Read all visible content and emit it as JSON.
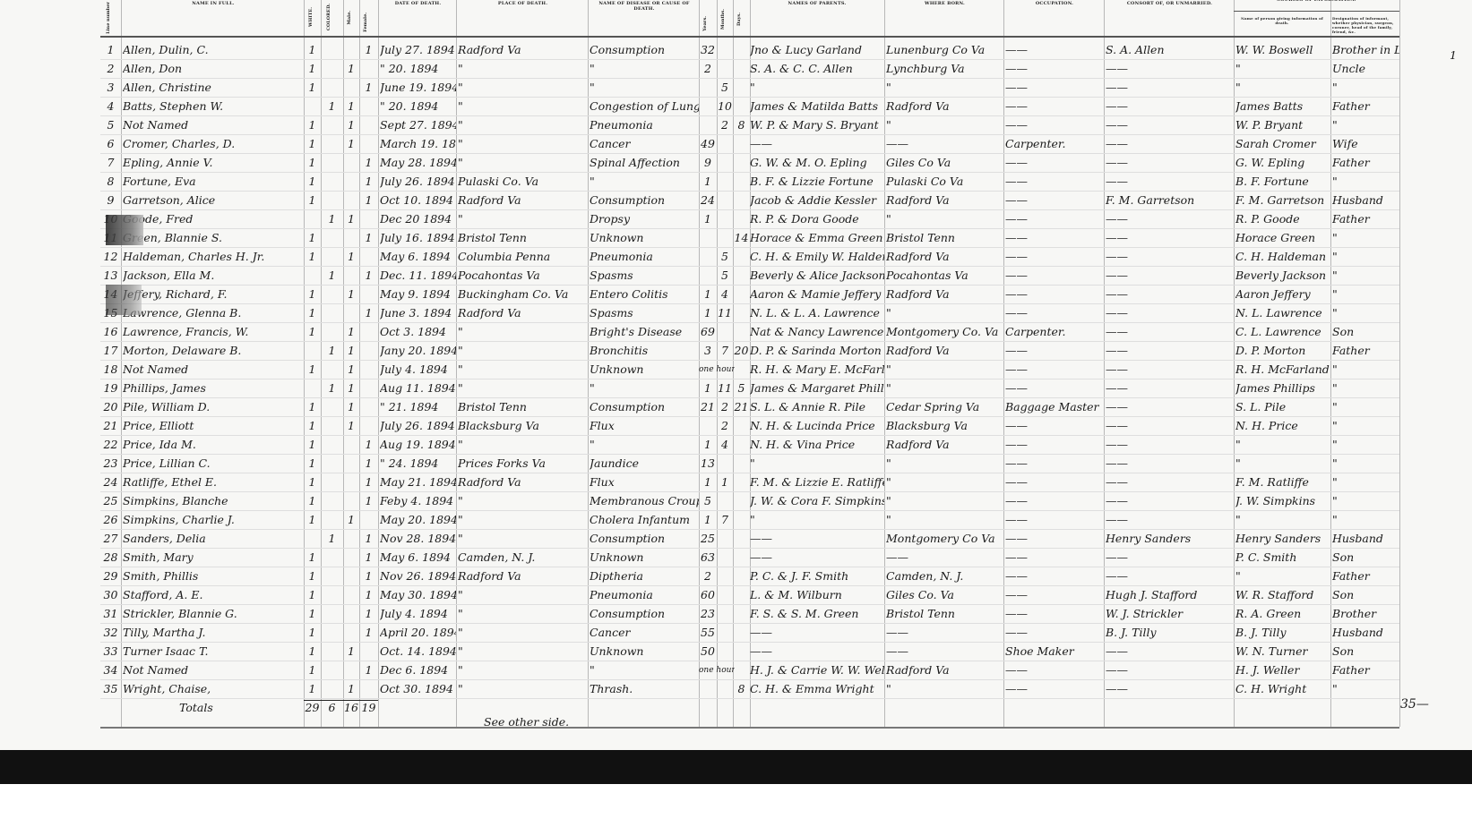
{
  "headers": {
    "line_number": "Line number",
    "name": "NAME IN FULL.",
    "white": "WHITE.",
    "colored": "COLORED.",
    "male": "Male.",
    "female": "Female.",
    "date": "DATE OF DEATH.",
    "place": "PLACE OF DEATH.",
    "cause": "NAME OF DISEASE OR CAUSE OF DEATH.",
    "years": "Years.",
    "months": "Months.",
    "days": "Days.",
    "parents": "NAMES OF PARENTS.",
    "born": "WHERE BORN.",
    "occupation": "OCCUPATION.",
    "consort": "CONSORT OF, OR UNMARRIED.",
    "sources": "SOURCES OF INFORMATION.",
    "informant": "Name of person giving information of death.",
    "designation": "Designation of informant, whether physician, surgeon, coroner, head of the family, friend, &c."
  },
  "rows": [
    {
      "no": "1",
      "name": "Allen, Dulin, C.",
      "white": "1",
      "colored": "",
      "male": "",
      "female": "1",
      "date": "July 27. 1894",
      "place": "Radford Va",
      "cause": "Consumption",
      "years": "32",
      "months": "",
      "days": "",
      "parents": "Jno & Lucy Garland",
      "born": "Lunenburg Co Va",
      "occupation": "——",
      "consort": "S. A. Allen",
      "informant": "W. W. Boswell",
      "designation": "Brother in Law"
    },
    {
      "no": "2",
      "name": "Allen, Don",
      "white": "1",
      "colored": "",
      "male": "1",
      "female": "",
      "date": "\" 20. 1894",
      "place": "\"",
      "cause": "\"",
      "years": "2",
      "months": "",
      "days": "",
      "parents": "S. A. & C. C. Allen",
      "born": "Lynchburg Va",
      "occupation": "——",
      "consort": "——",
      "informant": "\"",
      "designation": "Uncle"
    },
    {
      "no": "3",
      "name": "Allen, Christine",
      "white": "1",
      "colored": "",
      "male": "",
      "female": "1",
      "date": "June 19. 1894",
      "place": "\"",
      "cause": "\"",
      "years": "",
      "months": "5",
      "days": "",
      "parents": "\"",
      "born": "\"",
      "occupation": "——",
      "consort": "——",
      "informant": "\"",
      "designation": "\""
    },
    {
      "no": "4",
      "name": "Batts, Stephen W.",
      "white": "",
      "colored": "1",
      "male": "1",
      "female": "",
      "date": "\" 20. 1894",
      "place": "\"",
      "cause": "Congestion of Lungs",
      "years": "",
      "months": "10",
      "days": "",
      "parents": "James & Matilda Batts",
      "born": "Radford Va",
      "occupation": "——",
      "consort": "——",
      "informant": "James Batts",
      "designation": "Father"
    },
    {
      "no": "5",
      "name": "Not Named",
      "white": "1",
      "colored": "",
      "male": "1",
      "female": "",
      "date": "Sept 27. 1894",
      "place": "\"",
      "cause": "Pneumonia",
      "years": "",
      "months": "2",
      "days": "8",
      "parents": "W. P. & Mary S. Bryant",
      "born": "\"",
      "occupation": "——",
      "consort": "——",
      "informant": "W. P. Bryant",
      "designation": "\""
    },
    {
      "no": "6",
      "name": "Cromer, Charles, D.",
      "white": "1",
      "colored": "",
      "male": "1",
      "female": "",
      "date": "March 19. 1894",
      "place": "\"",
      "cause": "Cancer",
      "years": "49",
      "months": "",
      "days": "",
      "parents": "——",
      "born": "——",
      "occupation": "Carpenter.",
      "consort": "——",
      "informant": "Sarah Cromer",
      "designation": "Wife"
    },
    {
      "no": "7",
      "name": "Epling, Annie V.",
      "white": "1",
      "colored": "",
      "male": "",
      "female": "1",
      "date": "May 28. 1894",
      "place": "\"",
      "cause": "Spinal Affection",
      "years": "9",
      "months": "",
      "days": "",
      "parents": "G. W. & M. O. Epling",
      "born": "Giles Co Va",
      "occupation": "——",
      "consort": "——",
      "informant": "G. W. Epling",
      "designation": "Father"
    },
    {
      "no": "8",
      "name": "Fortune, Eva",
      "white": "1",
      "colored": "",
      "male": "",
      "female": "1",
      "date": "July 26. 1894",
      "place": "Pulaski Co. Va",
      "cause": "\"",
      "years": "1",
      "months": "",
      "days": "",
      "parents": "B. F. & Lizzie Fortune",
      "born": "Pulaski Co Va",
      "occupation": "——",
      "consort": "——",
      "informant": "B. F. Fortune",
      "designation": "\""
    },
    {
      "no": "9",
      "name": "Garretson, Alice",
      "white": "1",
      "colored": "",
      "male": "",
      "female": "1",
      "date": "Oct 10. 1894",
      "place": "Radford Va",
      "cause": "Consumption",
      "years": "24",
      "months": "",
      "days": "",
      "parents": "Jacob & Addie Kessler",
      "born": "Radford Va",
      "occupation": "——",
      "consort": "F. M. Garretson",
      "informant": "F. M. Garretson",
      "designation": "Husband"
    },
    {
      "no": "10",
      "name": "Goode, Fred",
      "white": "",
      "colored": "1",
      "male": "1",
      "female": "",
      "date": "Dec 20 1894",
      "place": "\"",
      "cause": "Dropsy",
      "years": "1",
      "months": "",
      "days": "",
      "parents": "R. P. & Dora Goode",
      "born": "\"",
      "occupation": "——",
      "consort": "——",
      "informant": "R. P. Goode",
      "designation": "Father"
    },
    {
      "no": "11",
      "name": "Green, Blannie S.",
      "white": "1",
      "colored": "",
      "male": "",
      "female": "1",
      "date": "July 16. 1894",
      "place": "Bristol Tenn",
      "cause": "Unknown",
      "years": "",
      "months": "",
      "days": "14",
      "parents": "Horace & Emma Green",
      "born": "Bristol Tenn",
      "occupation": "——",
      "consort": "——",
      "informant": "Horace Green",
      "designation": "\""
    },
    {
      "no": "12",
      "name": "Haldeman, Charles H. Jr.",
      "white": "1",
      "colored": "",
      "male": "1",
      "female": "",
      "date": "May 6. 1894",
      "place": "Columbia Penna",
      "cause": "Pneumonia",
      "years": "",
      "months": "5",
      "days": "",
      "parents": "C. H. & Emily W. Haldeman",
      "born": "Radford Va",
      "occupation": "——",
      "consort": "——",
      "informant": "C. H. Haldeman",
      "designation": "\""
    },
    {
      "no": "13",
      "name": "Jackson, Ella M.",
      "white": "",
      "colored": "1",
      "male": "",
      "female": "1",
      "date": "Dec. 11. 1894",
      "place": "Pocahontas Va",
      "cause": "Spasms",
      "years": "",
      "months": "5",
      "days": "",
      "parents": "Beverly & Alice Jackson",
      "born": "Pocahontas Va",
      "occupation": "——",
      "consort": "——",
      "informant": "Beverly Jackson",
      "designation": "\""
    },
    {
      "no": "14",
      "name": "Jeffery, Richard, F.",
      "white": "1",
      "colored": "",
      "male": "1",
      "female": "",
      "date": "May 9. 1894",
      "place": "Buckingham Co. Va",
      "cause": "Entero Colitis",
      "years": "1",
      "months": "4",
      "days": "",
      "parents": "Aaron & Mamie Jeffery",
      "born": "Radford Va",
      "occupation": "——",
      "consort": "——",
      "informant": "Aaron Jeffery",
      "designation": "\""
    },
    {
      "no": "15",
      "name": "Lawrence, Glenna B.",
      "white": "1",
      "colored": "",
      "male": "",
      "female": "1",
      "date": "June 3. 1894",
      "place": "Radford Va",
      "cause": "Spasms",
      "years": "1",
      "months": "11",
      "days": "",
      "parents": "N. L. & L. A. Lawrence",
      "born": "\"",
      "occupation": "——",
      "consort": "——",
      "informant": "N. L. Lawrence",
      "designation": "\""
    },
    {
      "no": "16",
      "name": "Lawrence, Francis, W.",
      "white": "1",
      "colored": "",
      "male": "1",
      "female": "",
      "date": "Oct 3. 1894",
      "place": "\"",
      "cause": "Bright's Disease",
      "years": "69",
      "months": "",
      "days": "",
      "parents": "Nat & Nancy Lawrence",
      "born": "Montgomery Co. Va",
      "occupation": "Carpenter.",
      "consort": "——",
      "informant": "C. L. Lawrence",
      "designation": "Son"
    },
    {
      "no": "17",
      "name": "Morton, Delaware B.",
      "white": "",
      "colored": "1",
      "male": "1",
      "female": "",
      "date": "Jany 20. 1894",
      "place": "\"",
      "cause": "Bronchitis",
      "years": "3",
      "months": "7",
      "days": "20",
      "parents": "D. P. & Sarinda Morton",
      "born": "Radford Va",
      "occupation": "——",
      "consort": "——",
      "informant": "D. P. Morton",
      "designation": "Father"
    },
    {
      "no": "18",
      "name": "Not Named",
      "white": "1",
      "colored": "",
      "male": "1",
      "female": "",
      "date": "July 4. 1894",
      "place": "\"",
      "cause": "Unknown",
      "years": "one hour",
      "months": "",
      "days": "",
      "parents": "R. H. & Mary E. McFarland",
      "born": "\"",
      "occupation": "——",
      "consort": "——",
      "informant": "R. H. McFarland",
      "designation": "\""
    },
    {
      "no": "19",
      "name": "Phillips, James",
      "white": "",
      "colored": "1",
      "male": "1",
      "female": "",
      "date": "Aug 11. 1894",
      "place": "\"",
      "cause": "\"",
      "years": "1",
      "months": "11",
      "days": "5",
      "parents": "James & Margaret Phillips",
      "born": "\"",
      "occupation": "——",
      "consort": "——",
      "informant": "James Phillips",
      "designation": "\""
    },
    {
      "no": "20",
      "name": "Pile, William D.",
      "white": "1",
      "colored": "",
      "male": "1",
      "female": "",
      "date": "\" 21. 1894",
      "place": "Bristol Tenn",
      "cause": "Consumption",
      "years": "21",
      "months": "2",
      "days": "21",
      "parents": "S. L. & Annie R. Pile",
      "born": "Cedar Spring Va",
      "occupation": "Baggage Master",
      "consort": "——",
      "informant": "S. L. Pile",
      "designation": "\""
    },
    {
      "no": "21",
      "name": "Price, Elliott",
      "white": "1",
      "colored": "",
      "male": "1",
      "female": "",
      "date": "July 26. 1894",
      "place": "Blacksburg Va",
      "cause": "Flux",
      "years": "",
      "months": "2",
      "days": "",
      "parents": "N. H. & Lucinda Price",
      "born": "Blacksburg Va",
      "occupation": "——",
      "consort": "——",
      "informant": "N. H. Price",
      "designation": "\""
    },
    {
      "no": "22",
      "name": "Price, Ida M.",
      "white": "1",
      "colored": "",
      "male": "",
      "female": "1",
      "date": "Aug 19. 1894",
      "place": "\"",
      "cause": "\"",
      "years": "1",
      "months": "4",
      "days": "",
      "parents": "N. H. & Vina Price",
      "born": "Radford Va",
      "occupation": "——",
      "consort": "——",
      "informant": "\"",
      "designation": "\""
    },
    {
      "no": "23",
      "name": "Price, Lillian C.",
      "white": "1",
      "colored": "",
      "male": "",
      "female": "1",
      "date": "\" 24. 1894",
      "place": "Prices Forks Va",
      "cause": "Jaundice",
      "years": "13",
      "months": "",
      "days": "",
      "parents": "\"",
      "born": "\"",
      "occupation": "——",
      "consort": "——",
      "informant": "\"",
      "designation": "\""
    },
    {
      "no": "24",
      "name": "Ratliffe, Ethel E.",
      "white": "1",
      "colored": "",
      "male": "",
      "female": "1",
      "date": "May 21. 1894",
      "place": "Radford Va",
      "cause": "Flux",
      "years": "1",
      "months": "1",
      "days": "",
      "parents": "F. M. & Lizzie E. Ratliffe",
      "born": "\"",
      "occupation": "——",
      "consort": "——",
      "informant": "F. M. Ratliffe",
      "designation": "\""
    },
    {
      "no": "25",
      "name": "Simpkins, Blanche",
      "white": "1",
      "colored": "",
      "male": "",
      "female": "1",
      "date": "Feby 4. 1894",
      "place": "\"",
      "cause": "Membranous Croup",
      "years": "5",
      "months": "",
      "days": "",
      "parents": "J. W. & Cora F. Simpkins",
      "born": "\"",
      "occupation": "——",
      "consort": "——",
      "informant": "J. W. Simpkins",
      "designation": "\""
    },
    {
      "no": "26",
      "name": "Simpkins, Charlie J.",
      "white": "1",
      "colored": "",
      "male": "1",
      "female": "",
      "date": "May 20. 1894",
      "place": "\"",
      "cause": "Cholera Infantum",
      "years": "1",
      "months": "7",
      "days": "",
      "parents": "\"",
      "born": "\"",
      "occupation": "——",
      "consort": "——",
      "informant": "\"",
      "designation": "\""
    },
    {
      "no": "27",
      "name": "Sanders, Delia",
      "white": "",
      "colored": "1",
      "male": "",
      "female": "1",
      "date": "Nov 28. 1894",
      "place": "\"",
      "cause": "Consumption",
      "years": "25",
      "months": "",
      "days": "",
      "parents": "——",
      "born": "Montgomery Co Va",
      "occupation": "——",
      "consort": "Henry Sanders",
      "informant": "Henry Sanders",
      "designation": "Husband"
    },
    {
      "no": "28",
      "name": "Smith, Mary",
      "white": "1",
      "colored": "",
      "male": "",
      "female": "1",
      "date": "May 6. 1894",
      "place": "Camden, N. J.",
      "cause": "Unknown",
      "years": "63",
      "months": "",
      "days": "",
      "parents": "——",
      "born": "——",
      "occupation": "——",
      "consort": "——",
      "informant": "P. C. Smith",
      "designation": "Son"
    },
    {
      "no": "29",
      "name": "Smith, Phillis",
      "white": "1",
      "colored": "",
      "male": "",
      "female": "1",
      "date": "Nov 26. 1894",
      "place": "Radford Va",
      "cause": "Diptheria",
      "years": "2",
      "months": "",
      "days": "",
      "parents": "P. C. & J. F. Smith",
      "born": "Camden, N. J.",
      "occupation": "——",
      "consort": "——",
      "informant": "\"",
      "designation": "Father"
    },
    {
      "no": "30",
      "name": "Stafford, A. E.",
      "white": "1",
      "colored": "",
      "male": "",
      "female": "1",
      "date": "May 30. 1894",
      "place": "\"",
      "cause": "Pneumonia",
      "years": "60",
      "months": "",
      "days": "",
      "parents": "L. & M. Wilburn",
      "born": "Giles Co. Va",
      "occupation": "——",
      "consort": "Hugh J. Stafford",
      "informant": "W. R. Stafford",
      "designation": "Son"
    },
    {
      "no": "31",
      "name": "Strickler, Blannie G.",
      "white": "1",
      "colored": "",
      "male": "",
      "female": "1",
      "date": "July 4. 1894",
      "place": "\"",
      "cause": "Consumption",
      "years": "23",
      "months": "",
      "days": "",
      "parents": "F. S. & S. M. Green",
      "born": "Bristol Tenn",
      "occupation": "——",
      "consort": "W. J. Strickler",
      "informant": "R. A. Green",
      "designation": "Brother"
    },
    {
      "no": "32",
      "name": "Tilly, Martha J.",
      "white": "1",
      "colored": "",
      "male": "",
      "female": "1",
      "date": "April 20. 1894",
      "place": "\"",
      "cause": "Cancer",
      "years": "55",
      "months": "",
      "days": "",
      "parents": "——",
      "born": "——",
      "occupation": "——",
      "consort": "B. J. Tilly",
      "informant": "B. J. Tilly",
      "designation": "Husband"
    },
    {
      "no": "33",
      "name": "Turner Isaac T.",
      "white": "1",
      "colored": "",
      "male": "1",
      "female": "",
      "date": "Oct. 14. 1894",
      "place": "\"",
      "cause": "Unknown",
      "years": "50",
      "months": "",
      "days": "",
      "parents": "——",
      "born": "——",
      "occupation": "Shoe Maker",
      "consort": "——",
      "informant": "W. N. Turner",
      "designation": "Son"
    },
    {
      "no": "34",
      "name": "Not Named",
      "white": "1",
      "colored": "",
      "male": "",
      "female": "1",
      "date": "Dec 6. 1894",
      "place": "\"",
      "cause": "\"",
      "years": "one hour",
      "months": "",
      "days": "",
      "parents": "H. J. & Carrie W. W. Weller",
      "born": "Radford Va",
      "occupation": "——",
      "consort": "——",
      "informant": "H. J. Weller",
      "designation": "Father"
    },
    {
      "no": "35",
      "name": "Wright, Chaise,",
      "white": "1",
      "colored": "",
      "male": "1",
      "female": "",
      "date": "Oct 30. 1894",
      "place": "\"",
      "cause": "Thrash.",
      "years": "",
      "months": "",
      "days": "8",
      "parents": "C. H. & Emma Wright",
      "born": "\"",
      "occupation": "——",
      "consort": "——",
      "informant": "C. H. Wright",
      "designation": "\""
    }
  ],
  "totals": {
    "label": "Totals",
    "white": "29",
    "colored": "6",
    "male": "16",
    "female": "19"
  },
  "footer_note": "See other side.",
  "margin_mark": "1",
  "page_count": "35—"
}
